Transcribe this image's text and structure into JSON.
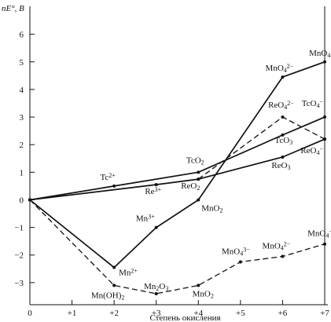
{
  "chart_data": {
    "type": "line",
    "ylabel_text": "nE°, В",
    "xlabel": "Степень окисления",
    "x_ticks": [
      "0",
      "+1",
      "+2",
      "+3",
      "+4",
      "+5",
      "+6",
      "+7"
    ],
    "y_ticks": [
      "6",
      "5",
      "4",
      "3",
      "2",
      "1",
      "0",
      "-1",
      "-2",
      "-3"
    ],
    "xlim": [
      0,
      7
    ],
    "ylim": [
      -3.8,
      6.9
    ],
    "series": [
      {
        "style": "solid",
        "points": [
          [
            0,
            0
          ],
          [
            2,
            -2.45
          ],
          [
            3,
            -1.0
          ],
          [
            4,
            0.0
          ],
          [
            6,
            4.45
          ],
          [
            7,
            5.0
          ]
        ],
        "labels": [
          {
            "i": 1,
            "parts": [
              {
                "t": "Mn"
              },
              {
                "t": "2+",
                "k": "sup"
              }
            ]
          },
          {
            "i": 2,
            "parts": [
              {
                "t": "Mn"
              },
              {
                "t": "3+",
                "k": "sup"
              }
            ]
          },
          {
            "i": 3,
            "parts": [
              {
                "t": "MnO"
              },
              {
                "t": "2",
                "k": "sub"
              }
            ]
          },
          {
            "i": 4,
            "parts": [
              {
                "t": "MnO"
              },
              {
                "t": "4",
                "k": "sub"
              },
              {
                "t": "2−",
                "k": "sup"
              }
            ]
          },
          {
            "i": 5,
            "parts": [
              {
                "t": "MnO"
              },
              {
                "t": "4",
                "k": "sub"
              },
              {
                "t": "−",
                "k": "sup"
              }
            ]
          }
        ]
      },
      {
        "style": "dashed",
        "points": [
          [
            0,
            0
          ],
          [
            2,
            -3.1
          ],
          [
            3,
            -3.4
          ],
          [
            4,
            -3.1
          ],
          [
            5,
            -2.25
          ],
          [
            6,
            -2.05
          ],
          [
            7,
            -1.6
          ]
        ],
        "labels": [
          {
            "i": 1,
            "parts": [
              {
                "t": "Mn(OH)"
              },
              {
                "t": "2",
                "k": "sub"
              }
            ]
          },
          {
            "i": 2,
            "parts": [
              {
                "t": "Mn"
              },
              {
                "t": "2",
                "k": "sub"
              },
              {
                "t": "O"
              },
              {
                "t": "3",
                "k": "sub"
              }
            ]
          },
          {
            "i": 3,
            "parts": [
              {
                "t": "MnO"
              },
              {
                "t": "2",
                "k": "sub"
              }
            ]
          },
          {
            "i": 4,
            "parts": [
              {
                "t": "MnO"
              },
              {
                "t": "4",
                "k": "sub"
              },
              {
                "t": "3−",
                "k": "sup"
              }
            ]
          },
          {
            "i": 5,
            "parts": [
              {
                "t": "MnO"
              },
              {
                "t": "4",
                "k": "sub"
              },
              {
                "t": "2−",
                "k": "sup"
              }
            ]
          },
          {
            "i": 6,
            "parts": [
              {
                "t": "MnO"
              },
              {
                "t": "4",
                "k": "sub"
              },
              {
                "t": "−",
                "k": "sup"
              }
            ]
          }
        ]
      },
      {
        "style": "solid",
        "points": [
          [
            0,
            0
          ],
          [
            2,
            0.5
          ],
          [
            4,
            1.0
          ],
          [
            6,
            2.35
          ],
          [
            7,
            3.0
          ]
        ],
        "labels": [
          {
            "i": 1,
            "parts": [
              {
                "t": "Tc"
              },
              {
                "t": "2+",
                "k": "sup"
              }
            ]
          },
          {
            "i": 2,
            "parts": [
              {
                "t": "TcO"
              },
              {
                "t": "2",
                "k": "sub"
              }
            ]
          },
          {
            "i": 3,
            "parts": [
              {
                "t": "TcO"
              },
              {
                "t": "3",
                "k": "sub"
              }
            ]
          },
          {
            "i": 4,
            "parts": [
              {
                "t": "TcO"
              },
              {
                "t": "4",
                "k": "sub"
              },
              {
                "t": "−",
                "k": "sup"
              }
            ]
          }
        ]
      },
      {
        "style": "solid",
        "points": [
          [
            0,
            0
          ],
          [
            3,
            0.55
          ],
          [
            4,
            0.75
          ],
          [
            6,
            1.55
          ],
          [
            7,
            2.2
          ]
        ],
        "labels": [
          {
            "i": 1,
            "parts": [
              {
                "t": "Re"
              },
              {
                "t": "3+",
                "k": "sup"
              }
            ]
          },
          {
            "i": 2,
            "parts": [
              {
                "t": "ReO"
              },
              {
                "t": "2",
                "k": "sub"
              }
            ]
          },
          {
            "i": 3,
            "parts": [
              {
                "t": "ReO"
              },
              {
                "t": "3",
                "k": "sub"
              }
            ]
          },
          {
            "i": 4,
            "parts": [
              {
                "t": "ReO"
              },
              {
                "t": "4",
                "k": "sub"
              },
              {
                "t": "−",
                "k": "sup"
              }
            ]
          }
        ]
      },
      {
        "style": "dashed",
        "points": [
          [
            4,
            0.75
          ],
          [
            6,
            3.0
          ],
          [
            7,
            2.2
          ]
        ],
        "labels": [
          {
            "i": 1,
            "parts": [
              {
                "t": "ReO"
              },
              {
                "t": "4",
                "k": "sub"
              },
              {
                "t": "2−",
                "k": "sup"
              }
            ]
          }
        ]
      }
    ]
  }
}
